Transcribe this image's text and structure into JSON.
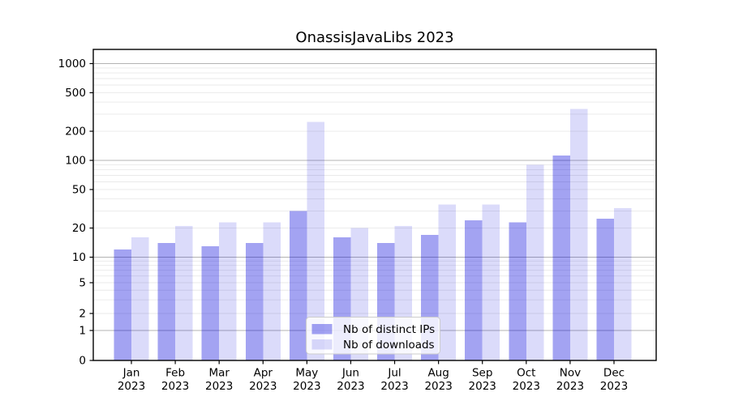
{
  "chart_data": {
    "type": "bar",
    "title": "OnassisJavaLibs 2023",
    "categories": [
      "Jan",
      "Feb",
      "Mar",
      "Apr",
      "May",
      "Jun",
      "Jul",
      "Aug",
      "Sep",
      "Oct",
      "Nov",
      "Dec"
    ],
    "category_year": "2023",
    "series": [
      {
        "name": "Nb of distinct IPs",
        "color": "rgba(0,0,220,0.36)",
        "values": [
          12,
          14,
          13,
          14,
          30,
          16,
          14,
          17,
          24,
          23,
          112,
          25
        ]
      },
      {
        "name": "Nb of downloads",
        "color": "rgba(0,0,220,0.14)",
        "values": [
          16,
          21,
          23,
          23,
          250,
          20,
          21,
          35,
          35,
          90,
          340,
          32
        ]
      }
    ],
    "yscale": "asinh-log",
    "yticks": [
      0,
      1,
      2,
      5,
      10,
      20,
      50,
      100,
      200,
      500,
      1000
    ],
    "ylim": [
      0,
      1400
    ],
    "xlabel": "",
    "ylabel": "",
    "grid": true,
    "legend_position": "lower center",
    "colors": {
      "major_grid": "#b3b3b3",
      "minor_grid": "#e9e9e9",
      "spine": "#000000",
      "legend_border": "#cccccc",
      "legend_bg": "rgba(255,255,255,0.8)"
    }
  }
}
